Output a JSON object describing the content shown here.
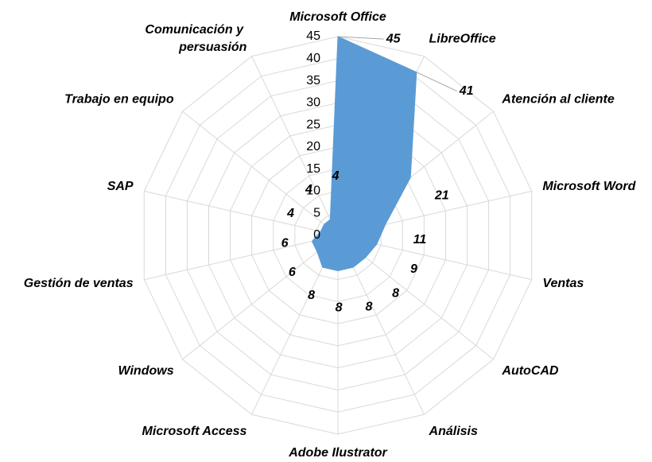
{
  "chart_data": {
    "type": "radar",
    "categories": [
      "Microsoft Office",
      "LibreOffice",
      "Atención al cliente",
      "Microsoft Word",
      "Ventas",
      "AutoCAD",
      "Análisis",
      "Adobe Ilustrator",
      "Microsoft Access",
      "Windows",
      "Gestión de ventas",
      "SAP",
      "Trabajo en equipo",
      "Comunicación y persuasión"
    ],
    "values": [
      45,
      41,
      21,
      11,
      9,
      8,
      8,
      8,
      8,
      6,
      6,
      4,
      4,
      4
    ],
    "color": "#5b9bd5",
    "ylim": [
      0,
      45
    ],
    "yticks": [
      0,
      5,
      10,
      15,
      20,
      25,
      30,
      35,
      40,
      45
    ],
    "grid": true
  }
}
